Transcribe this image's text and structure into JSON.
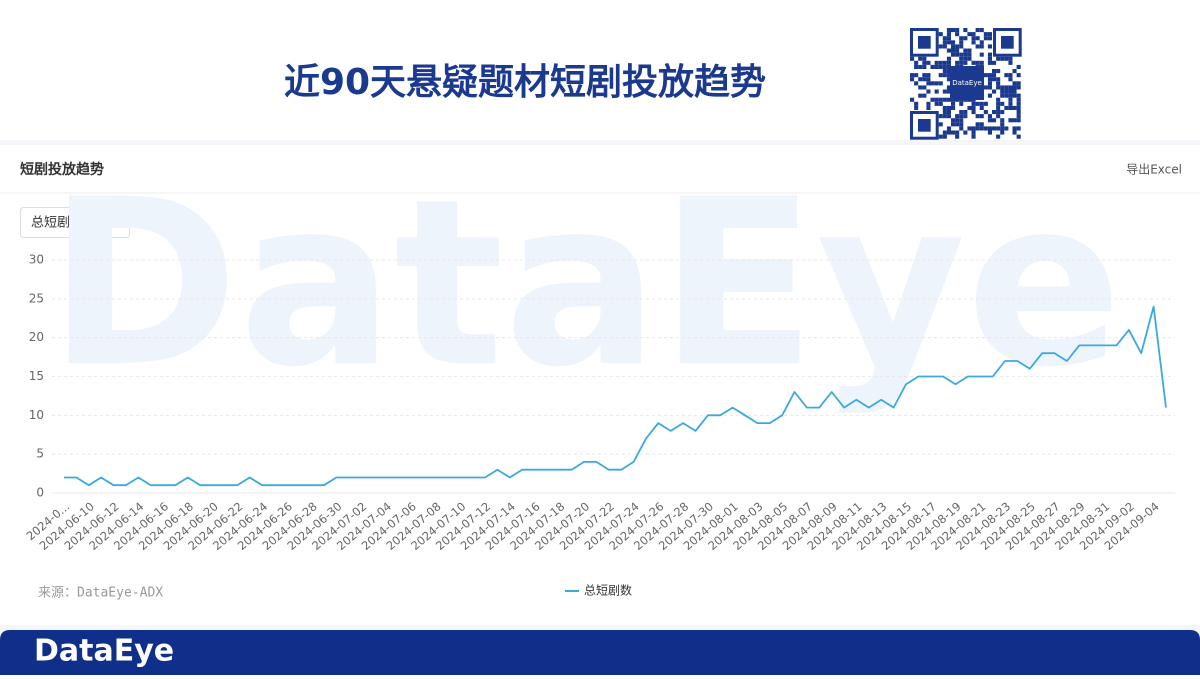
{
  "header": {
    "title": "近90天悬疑题材短剧投放趋势",
    "qr_label": "DataEye"
  },
  "card": {
    "title": "短剧投放趋势",
    "export": "导出Excel",
    "dropdown": "总短剧数",
    "watermark": "DataEye",
    "source": "来源：DataEye-ADX"
  },
  "footer": {
    "brand": "DataEye"
  },
  "chart_data": {
    "type": "line",
    "categories": [
      "2024-0...",
      null,
      "2024-06-10",
      null,
      "2024-06-12",
      null,
      "2024-06-14",
      null,
      "2024-06-16",
      null,
      "2024-06-18",
      null,
      "2024-06-20",
      null,
      "2024-06-22",
      null,
      "2024-06-24",
      null,
      "2024-06-26",
      null,
      "2024-06-28",
      null,
      "2024-06-30",
      null,
      "2024-07-02",
      null,
      "2024-07-04",
      null,
      "2024-07-06",
      null,
      "2024-07-08",
      null,
      "2024-07-10",
      null,
      "2024-07-12",
      null,
      "2024-07-14",
      null,
      "2024-07-16",
      null,
      "2024-07-18",
      null,
      "2024-07-20",
      null,
      "2024-07-22",
      null,
      "2024-07-24",
      null,
      "2024-07-26",
      null,
      "2024-07-28",
      null,
      "2024-07-30",
      null,
      "2024-08-01",
      null,
      "2024-08-03",
      null,
      "2024-08-05",
      null,
      "2024-08-07",
      null,
      "2024-08-09",
      null,
      "2024-08-11",
      null,
      "2024-08-13",
      null,
      "2024-08-15",
      null,
      "2024-08-17",
      null,
      "2024-08-19",
      null,
      "2024-08-21",
      null,
      "2024-08-23",
      null,
      "2024-08-25",
      null,
      "2024-08-27",
      null,
      "2024-08-29",
      null,
      "2024-08-31",
      null,
      "2024-09-02",
      null,
      "2024-09-04",
      null
    ],
    "series": [
      {
        "name": "总短剧数",
        "color": "#3ba9e0",
        "values": [
          2,
          2,
          1,
          2,
          1,
          1,
          2,
          1,
          1,
          1,
          2,
          1,
          1,
          1,
          1,
          2,
          1,
          1,
          1,
          1,
          1,
          1,
          2,
          2,
          2,
          2,
          2,
          2,
          2,
          2,
          2,
          2,
          2,
          2,
          2,
          3,
          2,
          3,
          3,
          3,
          3,
          3,
          4,
          4,
          3,
          3,
          4,
          7,
          9,
          8,
          9,
          8,
          10,
          10,
          11,
          10,
          9,
          9,
          10,
          13,
          11,
          11,
          13,
          11,
          12,
          11,
          12,
          11,
          14,
          15,
          15,
          15,
          14,
          15,
          15,
          15,
          17,
          17,
          16,
          18,
          18,
          17,
          19,
          19,
          19,
          19,
          21,
          18,
          24,
          11
        ]
      }
    ],
    "ylim": [
      0,
      30
    ],
    "yticks": [
      0,
      5,
      10,
      15,
      20,
      25,
      30
    ],
    "grid": true,
    "legend": "bottom"
  }
}
